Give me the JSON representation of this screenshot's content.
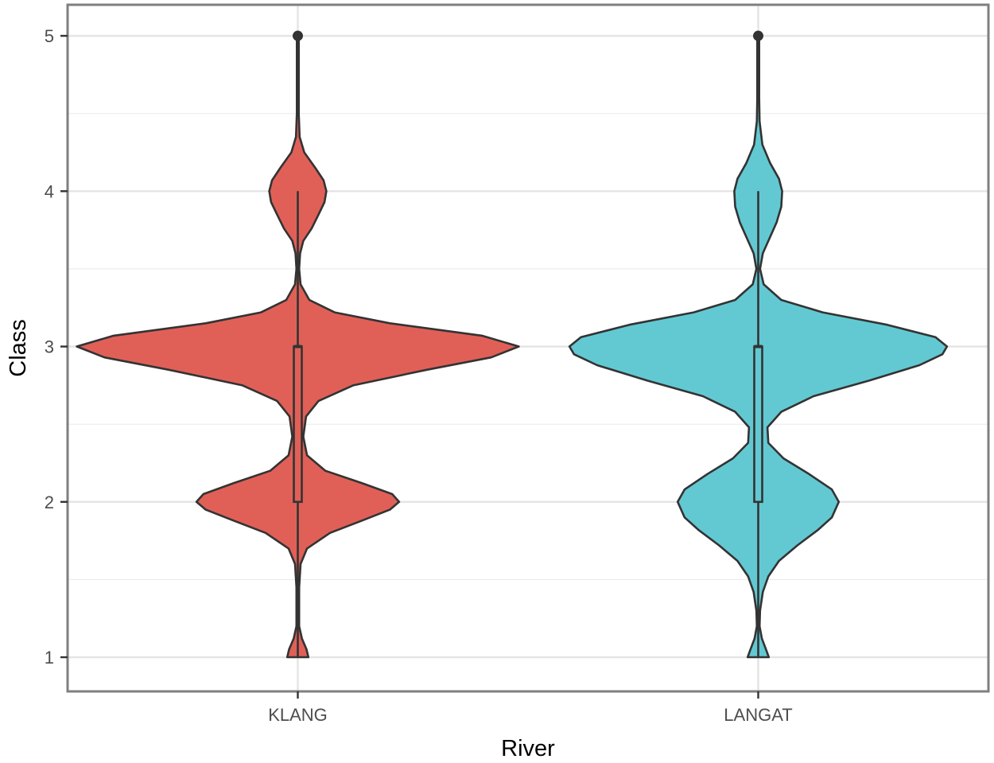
{
  "chart_data": {
    "type": "violin",
    "title": "",
    "xlabel": "River",
    "ylabel": "Class",
    "categories": [
      "KLANG",
      "LANGAT"
    ],
    "ylim": [
      0.78,
      5.2
    ],
    "yticks": [
      1,
      2,
      3,
      4,
      5
    ],
    "grid": true,
    "legend": "none",
    "series": [
      {
        "name": "KLANG",
        "color": "#E06058",
        "density": [
          {
            "y": 1.0,
            "w": 0.023
          },
          {
            "y": 1.05,
            "w": 0.019
          },
          {
            "y": 1.12,
            "w": 0.009
          },
          {
            "y": 1.2,
            "w": 0.003
          },
          {
            "y": 1.3,
            "w": 0.003
          },
          {
            "y": 1.45,
            "w": 0.003
          },
          {
            "y": 1.6,
            "w": 0.006
          },
          {
            "y": 1.7,
            "w": 0.02
          },
          {
            "y": 1.8,
            "w": 0.07
          },
          {
            "y": 1.88,
            "w": 0.14
          },
          {
            "y": 1.95,
            "w": 0.2
          },
          {
            "y": 2.0,
            "w": 0.22
          },
          {
            "y": 2.05,
            "w": 0.205
          },
          {
            "y": 2.12,
            "w": 0.14
          },
          {
            "y": 2.2,
            "w": 0.06
          },
          {
            "y": 2.3,
            "w": 0.02
          },
          {
            "y": 2.42,
            "w": 0.012
          },
          {
            "y": 2.55,
            "w": 0.018
          },
          {
            "y": 2.65,
            "w": 0.045
          },
          {
            "y": 2.75,
            "w": 0.12
          },
          {
            "y": 2.85,
            "w": 0.28
          },
          {
            "y": 2.93,
            "w": 0.42
          },
          {
            "y": 3.0,
            "w": 0.48
          },
          {
            "y": 3.07,
            "w": 0.4
          },
          {
            "y": 3.15,
            "w": 0.2
          },
          {
            "y": 3.22,
            "w": 0.08
          },
          {
            "y": 3.3,
            "w": 0.025
          },
          {
            "y": 3.4,
            "w": 0.006
          },
          {
            "y": 3.5,
            "w": 0.003
          },
          {
            "y": 3.6,
            "w": 0.005
          },
          {
            "y": 3.68,
            "w": 0.012
          },
          {
            "y": 3.76,
            "w": 0.03
          },
          {
            "y": 3.85,
            "w": 0.045
          },
          {
            "y": 3.93,
            "w": 0.058
          },
          {
            "y": 4.0,
            "w": 0.062
          },
          {
            "y": 4.07,
            "w": 0.056
          },
          {
            "y": 4.15,
            "w": 0.038
          },
          {
            "y": 4.25,
            "w": 0.014
          },
          {
            "y": 4.35,
            "w": 0.004
          },
          {
            "y": 4.5,
            "w": 0.002
          },
          {
            "y": 4.7,
            "w": 0.002
          },
          {
            "y": 4.9,
            "w": 0.002
          },
          {
            "y": 5.0,
            "w": 0.002
          }
        ],
        "box": {
          "min": 1,
          "q1": 2,
          "median": 3,
          "q3": 3,
          "max": 4
        },
        "outliers": [
          5
        ]
      },
      {
        "name": "LANGAT",
        "color": "#62C9D3",
        "density": [
          {
            "y": 1.0,
            "w": 0.023
          },
          {
            "y": 1.05,
            "w": 0.017
          },
          {
            "y": 1.12,
            "w": 0.008
          },
          {
            "y": 1.2,
            "w": 0.003
          },
          {
            "y": 1.3,
            "w": 0.004
          },
          {
            "y": 1.42,
            "w": 0.01
          },
          {
            "y": 1.52,
            "w": 0.022
          },
          {
            "y": 1.62,
            "w": 0.045
          },
          {
            "y": 1.72,
            "w": 0.085
          },
          {
            "y": 1.82,
            "w": 0.13
          },
          {
            "y": 1.9,
            "w": 0.16
          },
          {
            "y": 2.0,
            "w": 0.175
          },
          {
            "y": 2.08,
            "w": 0.16
          },
          {
            "y": 2.18,
            "w": 0.11
          },
          {
            "y": 2.28,
            "w": 0.055
          },
          {
            "y": 2.38,
            "w": 0.022
          },
          {
            "y": 2.48,
            "w": 0.02
          },
          {
            "y": 2.58,
            "w": 0.05
          },
          {
            "y": 2.68,
            "w": 0.12
          },
          {
            "y": 2.78,
            "w": 0.24
          },
          {
            "y": 2.88,
            "w": 0.35
          },
          {
            "y": 2.95,
            "w": 0.4
          },
          {
            "y": 3.0,
            "w": 0.41
          },
          {
            "y": 3.06,
            "w": 0.385
          },
          {
            "y": 3.14,
            "w": 0.28
          },
          {
            "y": 3.22,
            "w": 0.14
          },
          {
            "y": 3.3,
            "w": 0.05
          },
          {
            "y": 3.4,
            "w": 0.012
          },
          {
            "y": 3.5,
            "w": 0.004
          },
          {
            "y": 3.6,
            "w": 0.01
          },
          {
            "y": 3.7,
            "w": 0.025
          },
          {
            "y": 3.8,
            "w": 0.04
          },
          {
            "y": 3.9,
            "w": 0.05
          },
          {
            "y": 4.0,
            "w": 0.052
          },
          {
            "y": 4.08,
            "w": 0.045
          },
          {
            "y": 4.18,
            "w": 0.026
          },
          {
            "y": 4.3,
            "w": 0.009
          },
          {
            "y": 4.45,
            "w": 0.003
          },
          {
            "y": 4.6,
            "w": 0.002
          },
          {
            "y": 4.8,
            "w": 0.002
          },
          {
            "y": 5.0,
            "w": 0.002
          }
        ],
        "box": {
          "min": 1,
          "q1": 2,
          "median": 3,
          "q3": 3,
          "max": 4
        },
        "outliers": [
          5
        ]
      }
    ]
  }
}
